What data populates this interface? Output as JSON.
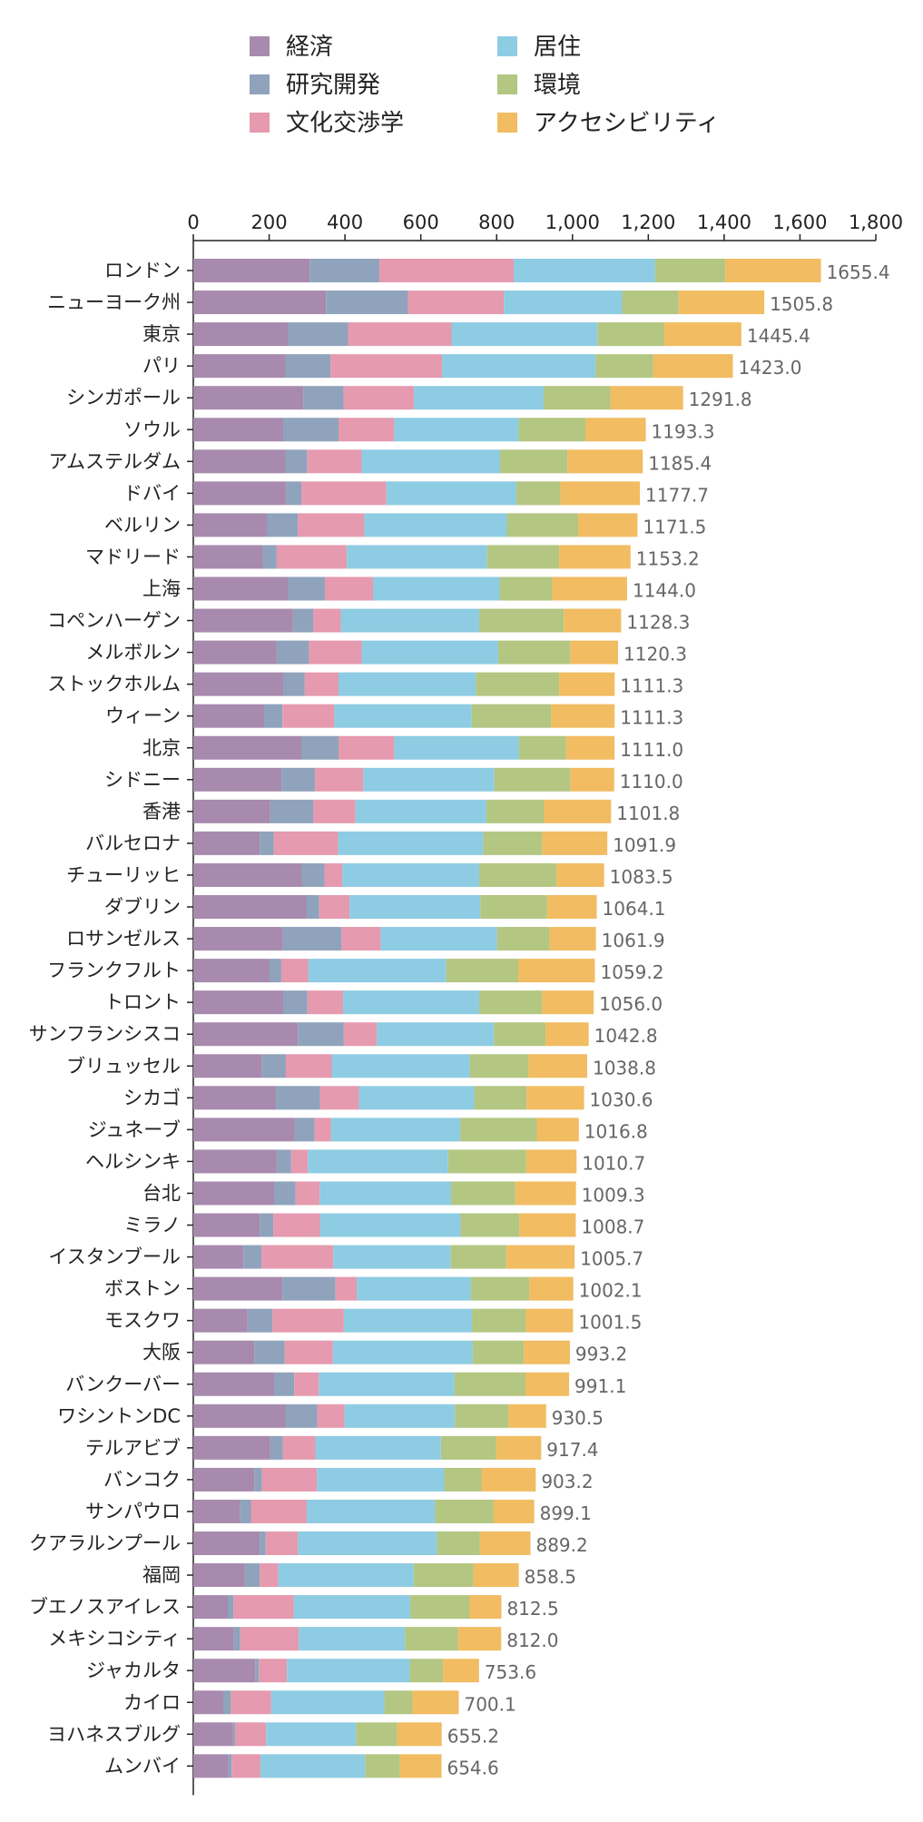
{
  "chart_data": {
    "type": "bar",
    "orientation": "horizontal",
    "stacked": true,
    "title": "",
    "xlabel": "",
    "ylabel": "",
    "xlim": [
      0,
      1800
    ],
    "xticks": [
      0,
      200,
      400,
      600,
      800,
      1000,
      1200,
      1400,
      1600,
      1800
    ],
    "xtick_labels": [
      "0",
      "200",
      "400",
      "600",
      "800",
      "1,000",
      "1,200",
      "1,400",
      "1,600",
      "1,800"
    ],
    "axis_position": "top",
    "legend_position": "top",
    "legend": [
      {
        "name": "経済",
        "color": "#a88aae"
      },
      {
        "name": "研究開発",
        "color": "#8fa3bc"
      },
      {
        "name": "文化交渉学",
        "color": "#e59aaf"
      },
      {
        "name": "居住",
        "color": "#8ecce3"
      },
      {
        "name": "環境",
        "color": "#b3c682"
      },
      {
        "name": "アクセシビリティ",
        "color": "#f1bc62"
      }
    ],
    "series_order": [
      "経済",
      "研究開発",
      "文化交渉学",
      "居住",
      "環境",
      "アクセシビリティ"
    ],
    "categories": [
      "ロンドン",
      "ニューヨーク州",
      "東京",
      "パリ",
      "シンガポール",
      "ソウル",
      "アムステルダム",
      "ドバイ",
      "ベルリン",
      "マドリード",
      "上海",
      "コペンハーゲン",
      "メルボルン",
      "ストックホルム",
      "ウィーン",
      "北京",
      "シドニー",
      "香港",
      "バルセロナ",
      "チューリッヒ",
      "ダブリン",
      "ロサンゼルス",
      "フランクフルト",
      "トロント",
      "サンフランシスコ",
      "ブリュッセル",
      "シカゴ",
      "ジュネーブ",
      "ヘルシンキ",
      "台北",
      "ミラノ",
      "イスタンブール",
      "ボストン",
      "モスクワ",
      "大阪",
      "バンクーバー",
      "ワシントンDC",
      "テルアビブ",
      "バンコク",
      "サンパウロ",
      "クアラルンプール",
      "福岡",
      "ブエノスアイレス",
      "メキシコシティ",
      "ジャカルタ",
      "カイロ",
      "ヨハネスブルグ",
      "ムンバイ"
    ],
    "totals": [
      "1655.4",
      "1505.8",
      "1445.4",
      "1423.0",
      "1291.8",
      "1193.3",
      "1185.4",
      "1177.7",
      "1171.5",
      "1153.2",
      "1144.0",
      "1128.3",
      "1120.3",
      "1111.3",
      "1111.3",
      "1111.0",
      "1110.0",
      "1101.8",
      "1091.9",
      "1083.5",
      "1064.1",
      "1061.9",
      "1059.2",
      "1056.0",
      "1042.8",
      "1038.8",
      "1030.6",
      "1016.8",
      "1010.7",
      "1009.3",
      "1008.7",
      "1005.7",
      "1002.1",
      "1001.5",
      "993.2",
      "991.1",
      "930.5",
      "917.4",
      "903.2",
      "899.1",
      "889.2",
      "858.5",
      "812.5",
      "812.0",
      "753.6",
      "700.1",
      "655.2",
      "654.6"
    ],
    "series": [
      {
        "name": "経済",
        "values": [
          307,
          350,
          250,
          243,
          290,
          238,
          243,
          245,
          195,
          183,
          250,
          263,
          220,
          238,
          188,
          286,
          233,
          203,
          175,
          286,
          298,
          236,
          201,
          238,
          276,
          181,
          218,
          267,
          220,
          213,
          175,
          132,
          235,
          143,
          161,
          213,
          244,
          203,
          161,
          123,
          175,
          136,
          91,
          107,
          163,
          79,
          105,
          91
        ]
      },
      {
        "name": "研究開発",
        "values": [
          184,
          216,
          158,
          119,
          106,
          145,
          57,
          40,
          81,
          37,
          97,
          53,
          85,
          56,
          47,
          97,
          88,
          113,
          37,
          60,
          34,
          155,
          31,
          63,
          121,
          63,
          116,
          53,
          38,
          57,
          36,
          48,
          140,
          66,
          80,
          53,
          83,
          33,
          20,
          29,
          16,
          39,
          15,
          17,
          10,
          20,
          5,
          10
        ]
      },
      {
        "name": "文化交渉学",
        "values": [
          354,
          253,
          273,
          294,
          186,
          147,
          144,
          224,
          175,
          185,
          127,
          73,
          139,
          89,
          137,
          147,
          127,
          112,
          170,
          47,
          80,
          103,
          71,
          94,
          87,
          121,
          103,
          43,
          44,
          63,
          123,
          189,
          56,
          188,
          127,
          65,
          72,
          86,
          145,
          147,
          85,
          49,
          159,
          154,
          74,
          106,
          82,
          76
        ]
      },
      {
        "name": "居住",
        "values": [
          373,
          312,
          385,
          405,
          342,
          328,
          365,
          343,
          376,
          370,
          334,
          365,
          360,
          362,
          362,
          329,
          346,
          345,
          383,
          361,
          345,
          307,
          364,
          359,
          309,
          364,
          304,
          341,
          370,
          347,
          371,
          310,
          301,
          338,
          369,
          358,
          291,
          331,
          336,
          339,
          367,
          357,
          307,
          280,
          324,
          299,
          237,
          276
        ]
      },
      {
        "name": "環境",
        "values": [
          185,
          149,
          175,
          152,
          176,
          177,
          178,
          116,
          188,
          190,
          139,
          223,
          190,
          220,
          210,
          124,
          200,
          152,
          155,
          204,
          176,
          139,
          190,
          166,
          136,
          155,
          138,
          202,
          206,
          169,
          155,
          146,
          154,
          142,
          135,
          187,
          141,
          146,
          98,
          154,
          113,
          158,
          157,
          140,
          88,
          74,
          109,
          92
        ]
      },
      {
        "name": "アクセシビリティ",
        "values": [
          252.4,
          225.8,
          204.4,
          210.0,
          191.8,
          158.3,
          198.4,
          209.7,
          156.5,
          188.2,
          197.0,
          151.3,
          126.3,
          146.3,
          167.3,
          128.0,
          116.0,
          176.8,
          171.9,
          125.5,
          131.1,
          121.9,
          202.2,
          136.0,
          113.8,
          154.8,
          151.6,
          110.8,
          132.7,
          160.3,
          148.7,
          180.7,
          116.1,
          124.5,
          121.2,
          115.1,
          99.5,
          118.4,
          143.2,
          107.1,
          133.2,
          119.5,
          83.5,
          114.0,
          94.6,
          122.1,
          117.2,
          109.6
        ]
      }
    ]
  }
}
